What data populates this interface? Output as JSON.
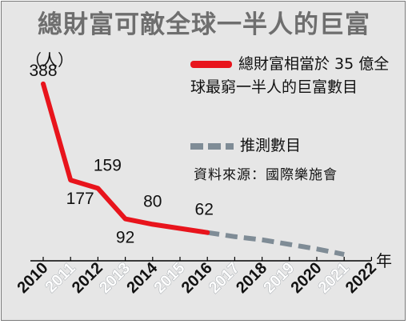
{
  "title": "總財富可敵全球一半人的巨富",
  "legend": {
    "actual": "總財富相當於 35 億全球最窮一半人的巨富數目",
    "projected": "推測數目"
  },
  "source": "資料來源：國際樂施會",
  "colors": {
    "actual": "#e8141c",
    "projected": "#7f8c96",
    "background": "#e6e6e6"
  },
  "chart_data": {
    "type": "line",
    "title": "總財富可敵全球一半人的巨富",
    "ylabel": "（人）",
    "xlabel": "年",
    "x_ticks": [
      "2010",
      "2011",
      "2012",
      "2013",
      "2014",
      "2015",
      "2016",
      "2017",
      "2018",
      "2019",
      "2020",
      "2021",
      "2022"
    ],
    "series": [
      {
        "name": "總財富相當於 35 億全球最窮一半人的巨富數目",
        "x": [
          2010,
          2011,
          2012,
          2013,
          2014,
          2016
        ],
        "y": [
          388,
          177,
          159,
          92,
          80,
          62
        ],
        "labels": [
          "388",
          "177",
          "159",
          "92",
          "80",
          "62"
        ]
      },
      {
        "name": "推測數目",
        "x": [
          2016,
          2017,
          2018,
          2019,
          2020,
          2021
        ],
        "y": [
          62,
          53,
          46,
          36,
          26,
          14
        ]
      }
    ],
    "xlim": [
      2010,
      2022
    ],
    "ylim": [
      0,
      400
    ],
    "grid": false,
    "legend_position": "top-right"
  }
}
